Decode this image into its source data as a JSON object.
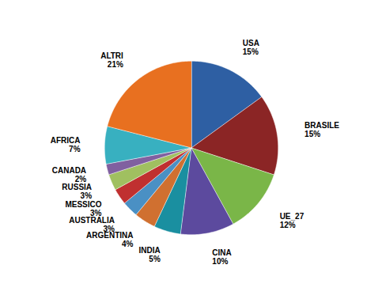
{
  "chart_data": {
    "type": "pie",
    "categories": [
      "USA",
      "BRASILE",
      "UE_27",
      "CINA",
      "INDIA",
      "ARGENTINA",
      "AUSTRALIA",
      "MESSICO",
      "RUSSIA",
      "CANADA",
      "AFRICA",
      "ALTRI"
    ],
    "values": [
      15,
      15,
      12,
      10,
      5,
      4,
      3,
      3,
      3,
      2,
      7,
      21
    ],
    "value_labels": [
      "15%",
      "15%",
      "12%",
      "10%",
      "5%",
      "4%",
      "3%",
      "3%",
      "3%",
      "2%",
      "7%",
      "21%"
    ],
    "colors": [
      "#2E5FA3",
      "#8B2525",
      "#7AB648",
      "#5C4A9E",
      "#1A8FA0",
      "#D07030",
      "#4A90C4",
      "#C03030",
      "#A0C060",
      "#8060A0",
      "#38B0C0",
      "#E87020"
    ],
    "data_labels": true
  }
}
